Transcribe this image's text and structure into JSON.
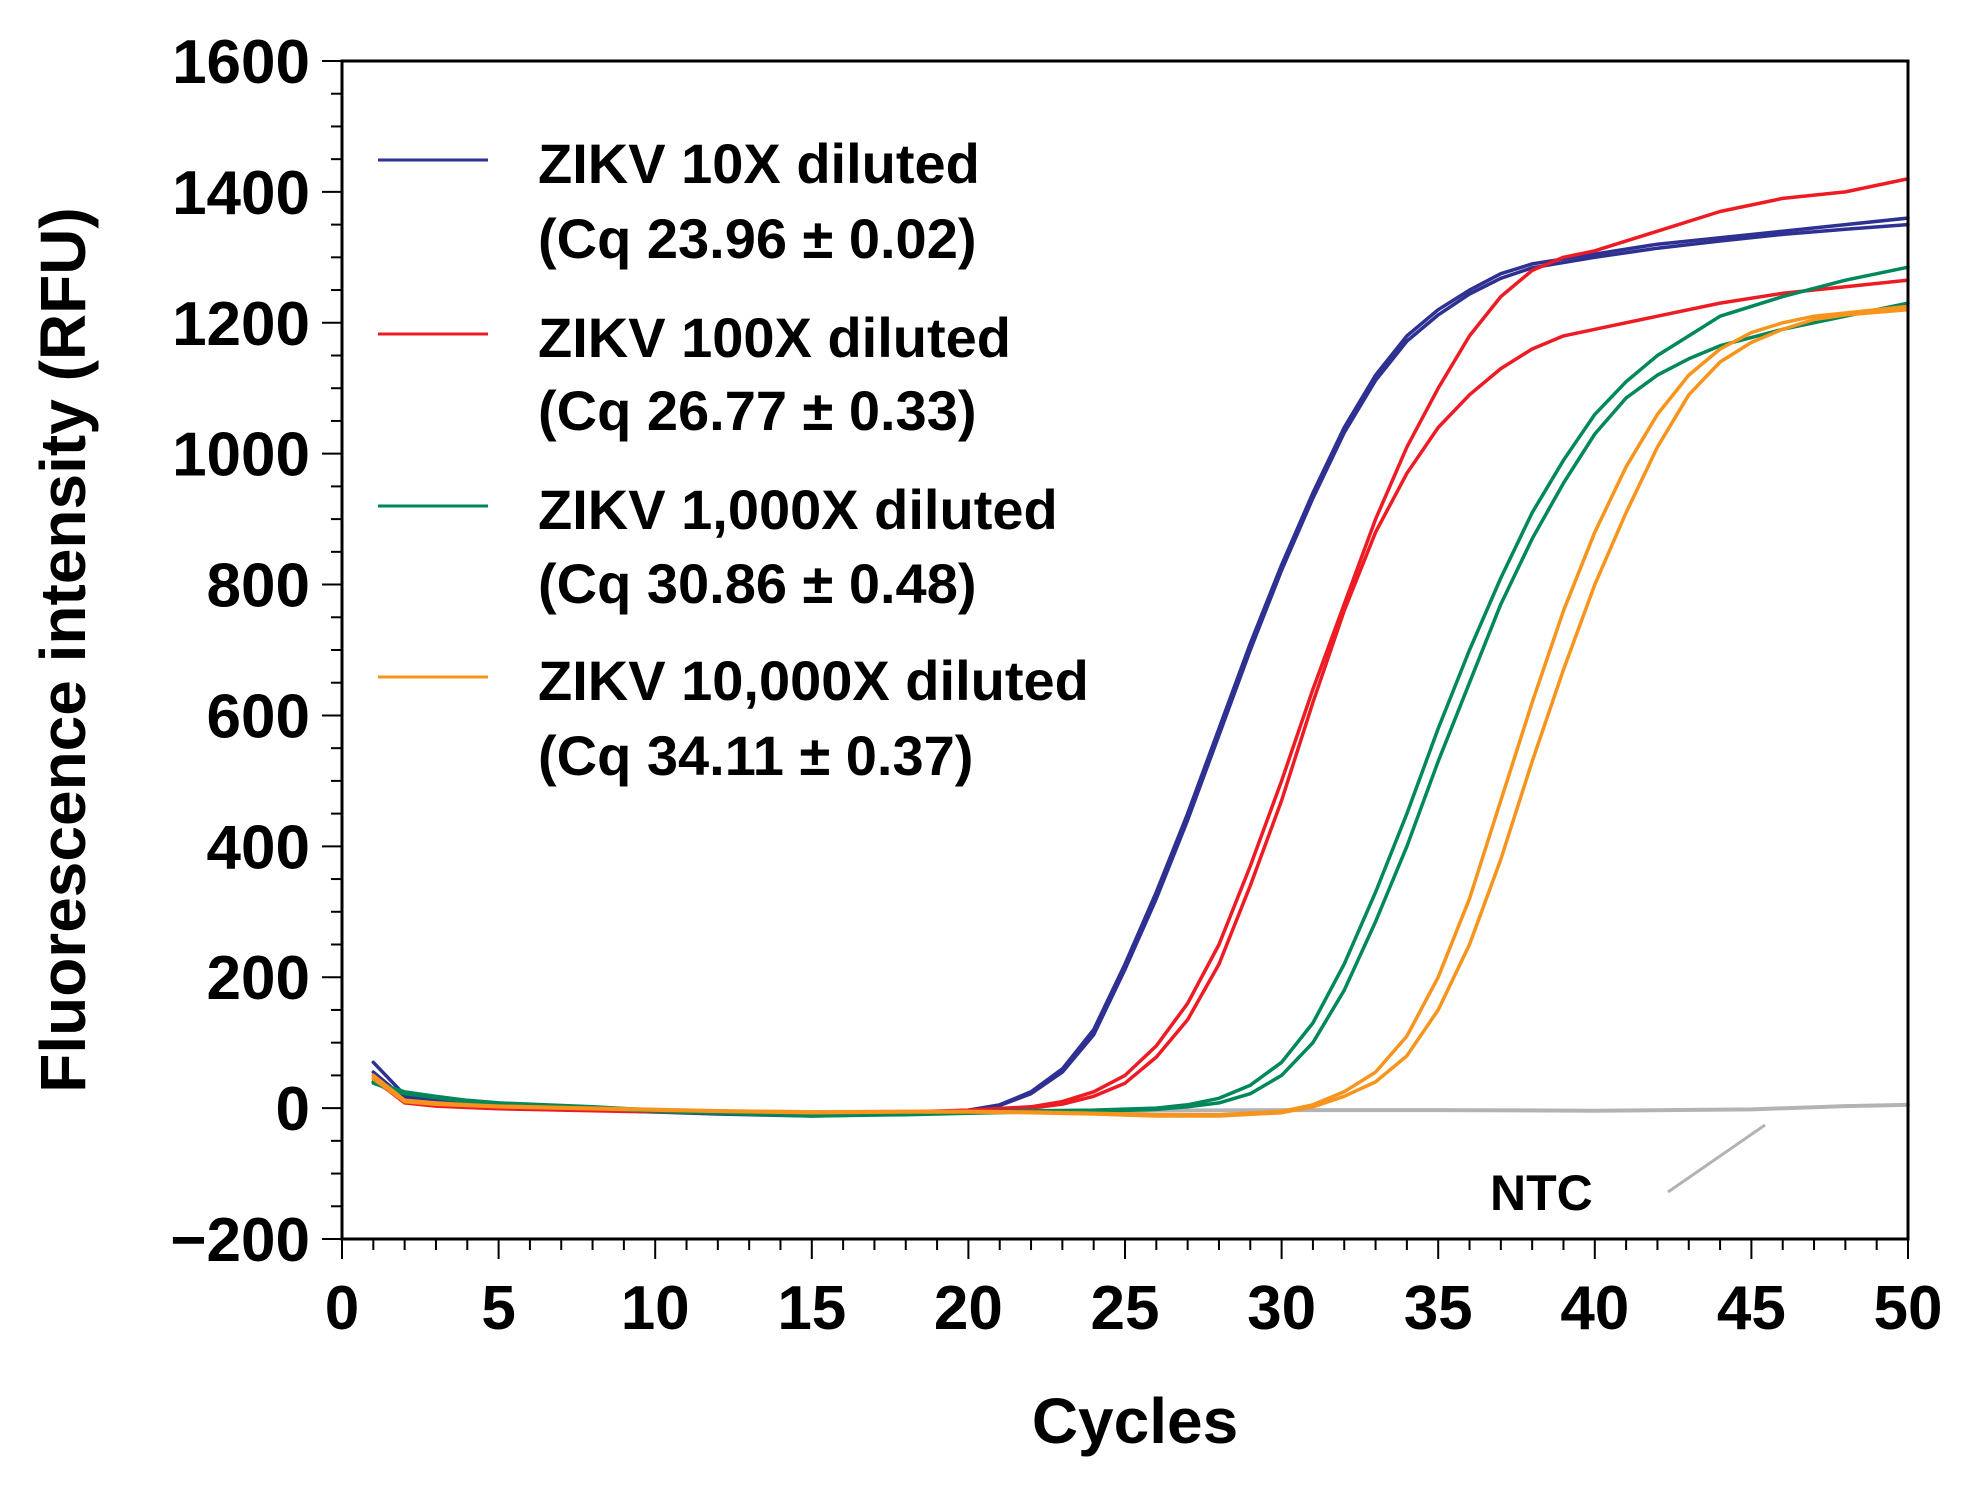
{
  "chart_data": {
    "type": "line",
    "title": "",
    "xlabel": "Cycles",
    "ylabel": "Fluorescence intensity (RFU)",
    "xlim": [
      0,
      50
    ],
    "ylim": [
      -200,
      1600
    ],
    "x_ticks": [
      "0",
      "5",
      "10",
      "15",
      "20",
      "25",
      "30",
      "35",
      "40",
      "45",
      "50"
    ],
    "y_ticks": [
      "−200",
      "0",
      "200",
      "400",
      "600",
      "800",
      "1000",
      "1200",
      "1400",
      "1600"
    ],
    "grid": false,
    "legend_position": "top-left",
    "series": [
      {
        "name": "ZIKV 10X diluted",
        "note": "(Cq 23.96 ± 0.02)",
        "color": "#2e3192",
        "replicates": [
          {
            "x": [
              1,
              2,
              3,
              4,
              5,
              8,
              10,
              12,
              15,
              18,
              20,
              21,
              22,
              23,
              24,
              25,
              26,
              27,
              28,
              29,
              30,
              31,
              32,
              33,
              34,
              35,
              36,
              37,
              38,
              40,
              42,
              44,
              46,
              48,
              50
            ],
            "y": [
              70,
              20,
              12,
              8,
              4,
              0,
              -5,
              -8,
              -10,
              -8,
              -3,
              5,
              25,
              60,
              120,
              220,
              330,
              450,
              580,
              710,
              830,
              940,
              1040,
              1120,
              1180,
              1220,
              1250,
              1275,
              1290,
              1305,
              1320,
              1330,
              1340,
              1350,
              1360
            ]
          },
          {
            "x": [
              1,
              2,
              3,
              4,
              5,
              8,
              10,
              12,
              15,
              18,
              20,
              21,
              22,
              23,
              24,
              25,
              26,
              27,
              28,
              29,
              30,
              31,
              32,
              33,
              34,
              35,
              36,
              37,
              38,
              40,
              42,
              44,
              46,
              48,
              50
            ],
            "y": [
              55,
              15,
              10,
              6,
              3,
              -2,
              -6,
              -9,
              -12,
              -9,
              -4,
              4,
              22,
              55,
              112,
              212,
              320,
              440,
              570,
              700,
              822,
              932,
              1032,
              1112,
              1172,
              1212,
              1244,
              1268,
              1284,
              1300,
              1314,
              1325,
              1335,
              1343,
              1350
            ]
          }
        ]
      },
      {
        "name": "ZIKV 100X diluted",
        "note": "(Cq 26.77 ± 0.33)",
        "color": "#ed1c24",
        "replicates": [
          {
            "x": [
              1,
              2,
              3,
              4,
              5,
              8,
              10,
              12,
              15,
              18,
              20,
              22,
              23,
              24,
              25,
              26,
              27,
              28,
              29,
              30,
              31,
              32,
              33,
              34,
              35,
              36,
              37,
              38,
              39,
              40,
              42,
              44,
              46,
              48,
              50
            ],
            "y": [
              50,
              10,
              5,
              2,
              0,
              -3,
              -5,
              -6,
              -8,
              -6,
              -3,
              2,
              10,
              25,
              50,
              95,
              160,
              250,
              370,
              500,
              640,
              770,
              900,
              1010,
              1100,
              1180,
              1240,
              1280,
              1300,
              1310,
              1340,
              1370,
              1390,
              1400,
              1420
            ]
          },
          {
            "x": [
              1,
              2,
              3,
              4,
              5,
              8,
              10,
              12,
              15,
              18,
              20,
              22,
              23,
              24,
              25,
              26,
              27,
              28,
              29,
              30,
              31,
              32,
              33,
              34,
              35,
              36,
              37,
              38,
              39,
              40,
              42,
              44,
              46,
              48,
              50
            ],
            "y": [
              45,
              8,
              3,
              1,
              -1,
              -4,
              -6,
              -7,
              -9,
              -7,
              -4,
              0,
              6,
              18,
              38,
              78,
              135,
              220,
              340,
              470,
              620,
              760,
              880,
              970,
              1040,
              1090,
              1130,
              1160,
              1180,
              1190,
              1210,
              1230,
              1245,
              1255,
              1265
            ]
          }
        ]
      },
      {
        "name": "ZIKV 1,000X diluted",
        "note": "(Cq 30.86 ± 0.48)",
        "color": "#00875a",
        "replicates": [
          {
            "x": [
              1,
              2,
              3,
              4,
              5,
              8,
              10,
              12,
              15,
              18,
              20,
              22,
              24,
              26,
              27,
              28,
              29,
              30,
              31,
              32,
              33,
              34,
              35,
              36,
              37,
              38,
              39,
              40,
              41,
              42,
              43,
              44,
              46,
              48,
              50
            ],
            "y": [
              40,
              25,
              18,
              12,
              8,
              2,
              -3,
              -6,
              -10,
              -8,
              -6,
              -4,
              -3,
              0,
              5,
              15,
              35,
              70,
              130,
              220,
              330,
              450,
              580,
              700,
              810,
              910,
              990,
              1060,
              1110,
              1150,
              1180,
              1210,
              1240,
              1265,
              1285
            ]
          },
          {
            "x": [
              1,
              2,
              3,
              4,
              5,
              8,
              10,
              12,
              15,
              18,
              20,
              22,
              24,
              26,
              27,
              28,
              29,
              30,
              31,
              32,
              33,
              34,
              35,
              36,
              37,
              38,
              39,
              40,
              41,
              42,
              43,
              44,
              46,
              48,
              50
            ],
            "y": [
              38,
              22,
              16,
              10,
              6,
              0,
              -5,
              -8,
              -12,
              -10,
              -8,
              -6,
              -5,
              -2,
              2,
              8,
              22,
              50,
              100,
              180,
              285,
              400,
              530,
              650,
              770,
              870,
              955,
              1030,
              1085,
              1120,
              1145,
              1165,
              1190,
              1210,
              1230
            ]
          }
        ]
      },
      {
        "name": "ZIKV 10,000X diluted",
        "note": "(Cq 34.11 ± 0.37)",
        "color": "#f7941d",
        "replicates": [
          {
            "x": [
              1,
              2,
              3,
              4,
              5,
              8,
              10,
              12,
              15,
              18,
              20,
              22,
              24,
              26,
              28,
              30,
              31,
              32,
              33,
              34,
              35,
              36,
              37,
              38,
              39,
              40,
              41,
              42,
              43,
              44,
              45,
              46,
              47,
              48,
              50
            ],
            "y": [
              50,
              12,
              8,
              5,
              3,
              0,
              -2,
              -4,
              -6,
              -5,
              -5,
              -6,
              -8,
              -10,
              -10,
              -5,
              5,
              25,
              55,
              110,
              200,
              320,
              470,
              620,
              760,
              880,
              980,
              1060,
              1120,
              1160,
              1185,
              1200,
              1210,
              1215,
              1225
            ]
          },
          {
            "x": [
              1,
              2,
              3,
              4,
              5,
              8,
              10,
              12,
              15,
              18,
              20,
              22,
              24,
              26,
              28,
              30,
              31,
              32,
              33,
              34,
              35,
              36,
              37,
              38,
              39,
              40,
              41,
              42,
              43,
              44,
              45,
              46,
              47,
              48,
              50
            ],
            "y": [
              45,
              10,
              6,
              4,
              2,
              -1,
              -3,
              -5,
              -7,
              -6,
              -6,
              -7,
              -9,
              -12,
              -12,
              -7,
              2,
              18,
              40,
              80,
              150,
              250,
              380,
              530,
              670,
              800,
              910,
              1010,
              1090,
              1140,
              1170,
              1190,
              1205,
              1212,
              1220
            ]
          }
        ]
      },
      {
        "name": "NTC",
        "color": "#b3b3b3",
        "replicates": [
          {
            "x": [
              1,
              2,
              3,
              5,
              10,
              15,
              20,
              25,
              30,
              35,
              40,
              45,
              48,
              50
            ],
            "y": [
              40,
              15,
              5,
              0,
              -4,
              -6,
              -5,
              -4,
              -3,
              -3,
              -4,
              -2,
              3,
              5
            ]
          }
        ]
      }
    ],
    "annotations": [
      {
        "text": "NTC",
        "points_to": "NTC"
      }
    ]
  }
}
